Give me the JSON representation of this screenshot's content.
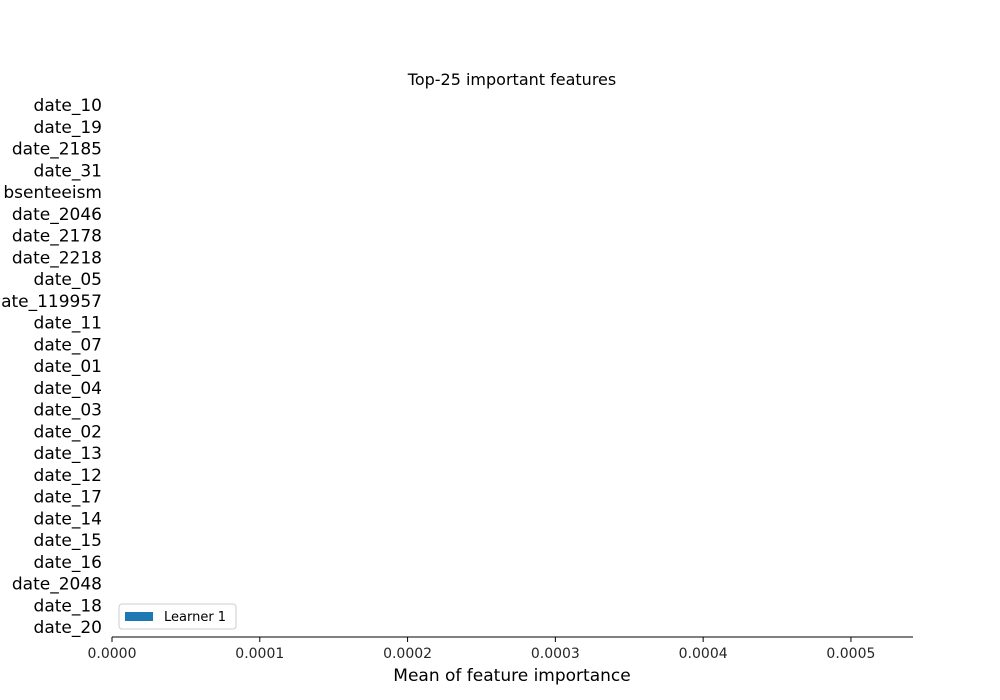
{
  "chart_data": {
    "type": "bar",
    "orientation": "horizontal",
    "title": "Top-25 important features",
    "xlabel": "Mean of feature importance",
    "ylabel": "",
    "xlim": [
      0,
      0.000542
    ],
    "xticks": [
      "0.0000",
      "0.0001",
      "0.0002",
      "0.0003",
      "0.0004",
      "0.0005"
    ],
    "xtick_values": [
      0,
      0.0001,
      0.0002,
      0.0003,
      0.0004,
      0.0005
    ],
    "categories": [
      "date_10",
      "date_19",
      "date_2185",
      "date_31",
      "bsenteeism",
      "date_2046",
      "date_2178",
      "date_2218",
      "date_05",
      "ate_119957",
      "date_11",
      "date_07",
      "date_01",
      "date_04",
      "date_03",
      "date_02",
      "date_13",
      "date_12",
      "date_17",
      "date_14",
      "date_15",
      "date_16",
      "date_2048",
      "date_18",
      "date_20"
    ],
    "series": [
      {
        "name": "Learner 1",
        "color": "#1f77b4",
        "values": [
          0,
          0,
          0,
          0,
          0,
          0,
          0,
          0,
          0,
          0,
          0,
          0,
          0,
          0,
          0,
          0,
          0,
          0,
          0,
          0,
          0,
          0,
          0,
          0,
          0
        ]
      }
    ],
    "legend_position": "lower-left",
    "grid": false
  }
}
